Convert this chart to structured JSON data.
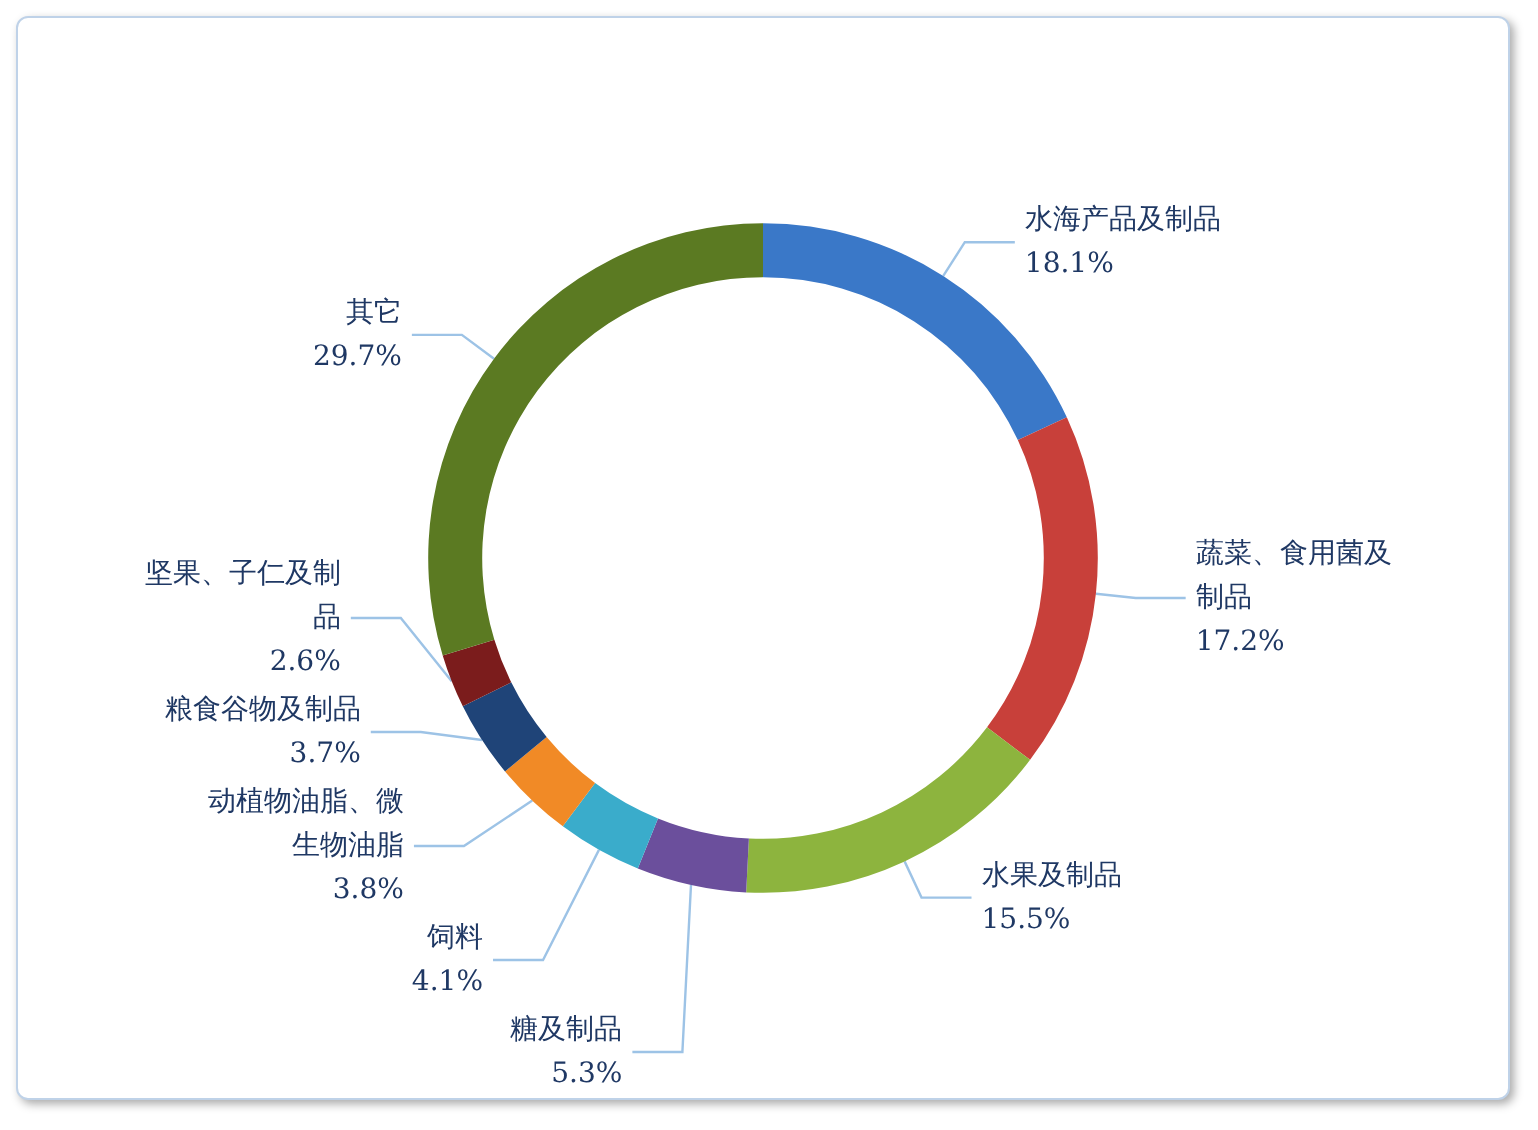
{
  "chart_data": {
    "type": "donut",
    "categories": [
      "水海产品及制品",
      "蔬菜、食用菌及制品",
      "水果及制品",
      "糖及制品",
      "饲料",
      "动植物油脂、微生物油脂",
      "粮食谷物及制品",
      "坚果、子仁及制品",
      "其它"
    ],
    "values": [
      18.1,
      17.2,
      15.5,
      5.3,
      4.1,
      3.8,
      3.7,
      2.6,
      29.7
    ],
    "value_labels": [
      "18.1%",
      "17.2%",
      "15.5%",
      "5.3%",
      "4.1%",
      "3.8%",
      "3.7%",
      "2.6%",
      "29.7%"
    ],
    "colors": [
      "#3a78c8",
      "#c8403a",
      "#8db43e",
      "#6b4f9c",
      "#3aaccb",
      "#f18a26",
      "#1f4478",
      "#7b1c1c",
      "#5b7a22"
    ],
    "legend": false
  }
}
